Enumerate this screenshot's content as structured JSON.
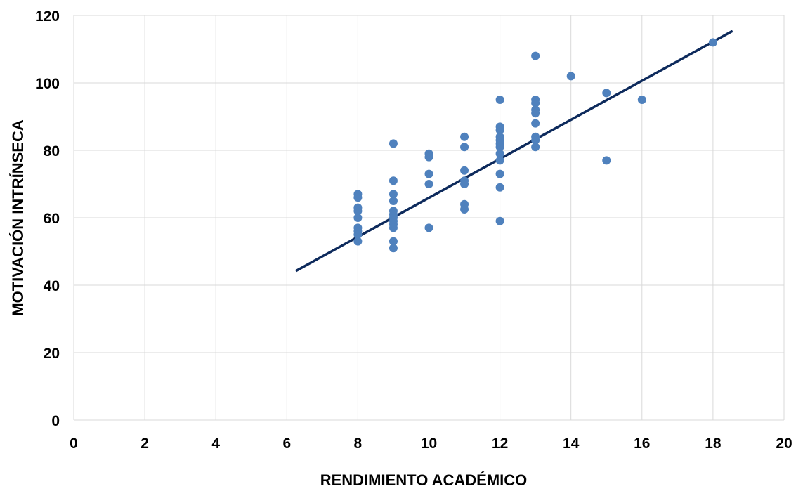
{
  "chart_data": {
    "type": "scatter",
    "xlabel": "RENDIMIENTO ACADÉMICO",
    "ylabel": "MOTIVACIÓN INTRÍNSECA",
    "x": [
      8,
      8,
      8,
      8,
      8,
      8,
      8,
      8,
      8,
      9,
      9,
      9,
      9,
      9,
      9,
      9,
      9,
      9,
      9,
      9,
      9,
      10,
      10,
      10,
      10,
      10,
      11,
      11,
      11,
      11,
      11,
      11,
      11,
      12,
      12,
      12,
      12,
      12,
      12,
      12,
      12,
      12,
      12,
      12,
      12,
      13,
      13,
      13,
      13,
      13,
      13,
      13,
      13,
      13,
      14,
      15,
      15,
      16,
      18
    ],
    "y": [
      67,
      66,
      63,
      62,
      60,
      57,
      56,
      55,
      53,
      82,
      71,
      67,
      65,
      62,
      61,
      60,
      59,
      58,
      57,
      53,
      51,
      79,
      78,
      73,
      70,
      57,
      84,
      81,
      74,
      71,
      70,
      64,
      62.5,
      95,
      87,
      86,
      84,
      83,
      82,
      81,
      79,
      77,
      73,
      69,
      59,
      108,
      95,
      94,
      92,
      91,
      88,
      84,
      83,
      81,
      102,
      97,
      77,
      95,
      112
    ],
    "color": "#4f81bd",
    "trendline": {
      "x": [
        6.25,
        18.55
      ],
      "y": [
        44.2,
        115.4
      ],
      "color": "#0d2a5c"
    },
    "xlim": [
      0,
      20
    ],
    "xticks": [
      0,
      2,
      4,
      6,
      8,
      10,
      12,
      14,
      16,
      18,
      20
    ],
    "ylim": [
      0,
      120
    ],
    "yticks": [
      0,
      20,
      40,
      60,
      80,
      100,
      120
    ],
    "grid": true
  }
}
